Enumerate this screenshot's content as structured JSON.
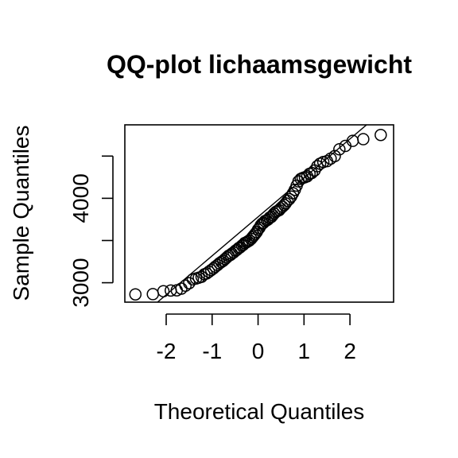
{
  "chart_data": {
    "type": "scatter",
    "title": "QQ-plot lichaamsgewicht",
    "xlabel": "Theoretical Quantiles",
    "ylabel": "Sample Quantiles",
    "xlim": [
      -2.9,
      2.95
    ],
    "ylim": [
      2770,
      4870
    ],
    "x_ticks": [
      -2,
      -1,
      0,
      1,
      2
    ],
    "y_ticks": [
      3000,
      3500,
      4000,
      4500
    ],
    "y_tick_labels": [
      "3000",
      "",
      "4000",
      ""
    ],
    "grid": false,
    "reference_line": {
      "x": [
        -2.6,
        2.6
      ],
      "y": [
        2580,
        4980
      ]
    },
    "points": [
      [
        -2.67,
        2862
      ],
      [
        -2.29,
        2865
      ],
      [
        -2.06,
        2900
      ],
      [
        -1.9,
        2908
      ],
      [
        -1.77,
        2910
      ],
      [
        -1.67,
        2930
      ],
      [
        -1.58,
        2965
      ],
      [
        -1.5,
        2995
      ],
      [
        -1.42,
        3040
      ],
      [
        -1.35,
        3050
      ],
      [
        -1.29,
        3060
      ],
      [
        -1.23,
        3070
      ],
      [
        -1.17,
        3100
      ],
      [
        -1.12,
        3110
      ],
      [
        -1.07,
        3130
      ],
      [
        -1.02,
        3150
      ],
      [
        -0.97,
        3170
      ],
      [
        -0.93,
        3190
      ],
      [
        -0.88,
        3210
      ],
      [
        -0.84,
        3230
      ],
      [
        -0.8,
        3245
      ],
      [
        -0.76,
        3260
      ],
      [
        -0.72,
        3280
      ],
      [
        -0.68,
        3300
      ],
      [
        -0.64,
        3320
      ],
      [
        -0.6,
        3330
      ],
      [
        -0.57,
        3345
      ],
      [
        -0.53,
        3360
      ],
      [
        -0.49,
        3380
      ],
      [
        -0.46,
        3390
      ],
      [
        -0.42,
        3410
      ],
      [
        -0.39,
        3420
      ],
      [
        -0.35,
        3440
      ],
      [
        -0.32,
        3450
      ],
      [
        -0.29,
        3470
      ],
      [
        -0.25,
        3480
      ],
      [
        -0.22,
        3490
      ],
      [
        -0.19,
        3500
      ],
      [
        -0.15,
        3520
      ],
      [
        -0.12,
        3540
      ],
      [
        -0.09,
        3560
      ],
      [
        -0.06,
        3580
      ],
      [
        -0.03,
        3600
      ],
      [
        0.0,
        3630
      ],
      [
        0.03,
        3650
      ],
      [
        0.06,
        3680
      ],
      [
        0.09,
        3700
      ],
      [
        0.12,
        3710
      ],
      [
        0.15,
        3730
      ],
      [
        0.19,
        3740
      ],
      [
        0.22,
        3750
      ],
      [
        0.25,
        3770
      ],
      [
        0.29,
        3780
      ],
      [
        0.32,
        3800
      ],
      [
        0.35,
        3820
      ],
      [
        0.39,
        3840
      ],
      [
        0.42,
        3850
      ],
      [
        0.46,
        3860
      ],
      [
        0.49,
        3880
      ],
      [
        0.53,
        3900
      ],
      [
        0.57,
        3920
      ],
      [
        0.6,
        3940
      ],
      [
        0.64,
        3970
      ],
      [
        0.68,
        3990
      ],
      [
        0.72,
        4020
      ],
      [
        0.76,
        4060
      ],
      [
        0.8,
        4100
      ],
      [
        0.84,
        4150
      ],
      [
        0.88,
        4200
      ],
      [
        0.93,
        4230
      ],
      [
        0.97,
        4240
      ],
      [
        1.02,
        4250
      ],
      [
        1.07,
        4260
      ],
      [
        1.12,
        4290
      ],
      [
        1.17,
        4300
      ],
      [
        1.23,
        4330
      ],
      [
        1.29,
        4380
      ],
      [
        1.35,
        4410
      ],
      [
        1.42,
        4430
      ],
      [
        1.5,
        4440
      ],
      [
        1.58,
        4470
      ],
      [
        1.67,
        4500
      ],
      [
        1.77,
        4580
      ],
      [
        1.9,
        4620
      ],
      [
        2.06,
        4680
      ],
      [
        2.29,
        4700
      ],
      [
        2.67,
        4750
      ]
    ]
  }
}
